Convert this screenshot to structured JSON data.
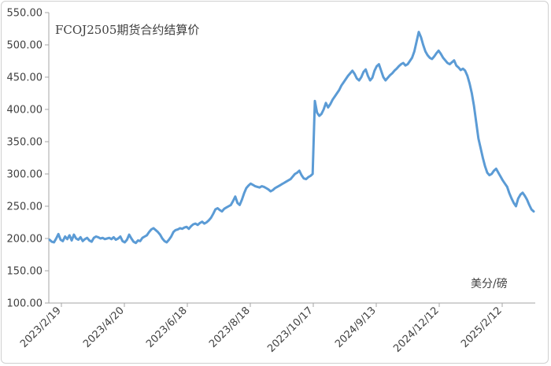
{
  "chart_data": {
    "type": "line",
    "title": "FCOJ2505期货合约结算价",
    "unit_label": "美分/磅",
    "ylim": [
      100,
      550
    ],
    "y_ticks": [
      "100.00",
      "150.00",
      "200.00",
      "250.00",
      "300.00",
      "350.00",
      "400.00",
      "450.00",
      "500.00",
      "550.00"
    ],
    "x_ticks": [
      "2023/2/19",
      "2023/4/20",
      "2023/6/18",
      "2023/8/18",
      "2023/10/17",
      "2024/9/13",
      "2024/12/12",
      "2025/2/12"
    ],
    "grid": false,
    "legend": "none",
    "color": "#5B9BD5",
    "series": [
      {
        "values": [
          198,
          195,
          194,
          200,
          207,
          198,
          196,
          203,
          199,
          205,
          197,
          206,
          200,
          198,
          202,
          196,
          199,
          201,
          197,
          195,
          201,
          203,
          202,
          200,
          201,
          199,
          200,
          201,
          199,
          202,
          198,
          200,
          203,
          196,
          194,
          198,
          206,
          200,
          195,
          193,
          197,
          196,
          201,
          203,
          205,
          210,
          214,
          216,
          213,
          210,
          206,
          200,
          196,
          194,
          198,
          203,
          210,
          213,
          214,
          216,
          215,
          217,
          218,
          215,
          219,
          222,
          223,
          221,
          224,
          226,
          223,
          225,
          228,
          232,
          238,
          245,
          247,
          244,
          242,
          246,
          248,
          250,
          252,
          258,
          265,
          255,
          252,
          260,
          270,
          278,
          282,
          285,
          283,
          281,
          280,
          279,
          281,
          280,
          278,
          276,
          273,
          275,
          278,
          280,
          282,
          284,
          286,
          288,
          290,
          292,
          296,
          300,
          302,
          305,
          298,
          293,
          292,
          295,
          297,
          300,
          413,
          395,
          390,
          393,
          400,
          410,
          403,
          408,
          415,
          420,
          425,
          430,
          437,
          442,
          447,
          452,
          456,
          460,
          455,
          448,
          445,
          450,
          458,
          462,
          452,
          445,
          449,
          460,
          467,
          470,
          460,
          450,
          445,
          449,
          453,
          456,
          460,
          463,
          467,
          470,
          472,
          468,
          470,
          475,
          480,
          490,
          505,
          520,
          512,
          500,
          490,
          484,
          480,
          478,
          482,
          487,
          491,
          486,
          480,
          476,
          472,
          470,
          473,
          476,
          468,
          465,
          461,
          463,
          460,
          452,
          440,
          425,
          405,
          380,
          355,
          340,
          325,
          312,
          302,
          298,
          300,
          305,
          308,
          302,
          296,
          290,
          285,
          280,
          270,
          262,
          255,
          250,
          262,
          268,
          271,
          266,
          260,
          252,
          245,
          242
        ]
      }
    ]
  }
}
